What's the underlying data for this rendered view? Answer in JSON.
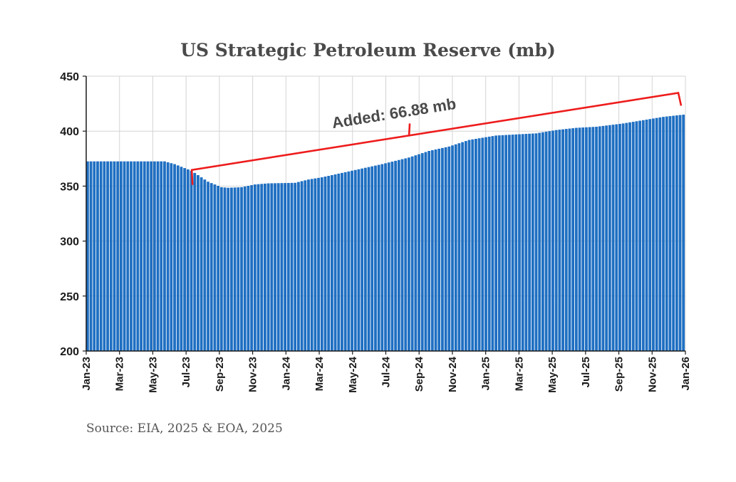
{
  "colors": {
    "bar": "#1f6fc2",
    "annotation": "#ee1c1c",
    "grid": "#d4d4d4",
    "axis": "#1a1a1a",
    "text": "#4a4a4a"
  },
  "chart_data": {
    "type": "bar",
    "title": "US Strategic Petroleum Reserve  (mb)",
    "source": "Source: EIA, 2025 & EOA, 2025",
    "xlabel": "",
    "ylabel": "",
    "ylim": [
      200,
      450
    ],
    "yticks": [
      200,
      250,
      300,
      350,
      400,
      450
    ],
    "grid": true,
    "x_tick_labels": [
      "Jan-23",
      "Mar-23",
      "May-23",
      "Jul-23",
      "Sep-23",
      "Nov-23",
      "Jan-24",
      "Mar-24",
      "May-24",
      "Jul-24",
      "Sep-24",
      "Nov-24",
      "Jan-25",
      "Mar-25",
      "May-25",
      "Jul-25",
      "Sep-25",
      "Nov-25",
      "Jan-26"
    ],
    "frequency": "weekly",
    "series_start": "Jan-23",
    "series_end": "Jan-26",
    "anchor_points": [
      [
        0,
        372.5
      ],
      [
        23,
        372.5
      ],
      [
        26,
        370
      ],
      [
        31,
        364
      ],
      [
        36,
        354
      ],
      [
        40,
        349
      ],
      [
        42,
        348.5
      ],
      [
        46,
        349
      ],
      [
        50,
        351.5
      ],
      [
        54,
        352.5
      ],
      [
        62,
        353
      ],
      [
        66,
        356
      ],
      [
        70,
        358
      ],
      [
        76,
        362
      ],
      [
        82,
        366
      ],
      [
        88,
        370
      ],
      [
        96,
        376
      ],
      [
        102,
        382
      ],
      [
        108,
        386
      ],
      [
        114,
        392
      ],
      [
        118,
        394
      ],
      [
        122,
        396
      ],
      [
        128,
        397
      ],
      [
        134,
        398
      ],
      [
        140,
        401
      ],
      [
        146,
        403
      ],
      [
        152,
        404
      ],
      [
        160,
        407
      ],
      [
        166,
        410
      ],
      [
        172,
        413
      ],
      [
        178,
        415
      ]
    ],
    "annotation": {
      "label": "Added: 66.88 mb",
      "from_label": "Jul-23",
      "to_label": "Jan-26",
      "from_value": 348.5,
      "to_value": 415.4
    }
  }
}
